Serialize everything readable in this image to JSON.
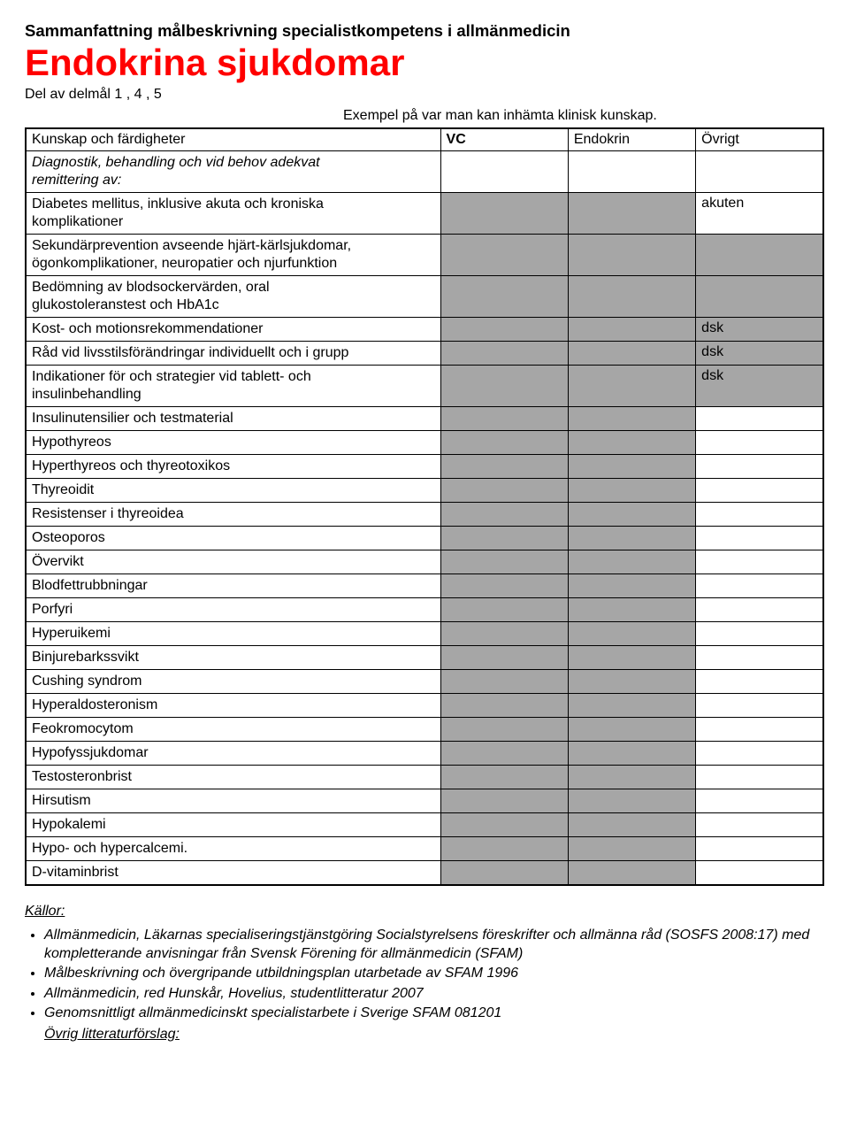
{
  "header": {
    "pretitle": "Sammanfattning målbeskrivning specialistkompetens i allmänmedicin",
    "title": "Endokrina sjukdomar",
    "subtitle": "Del av delmål 1 , 4 , 5",
    "example_line": "Exempel på var man kan inhämta klinisk kunskap."
  },
  "columns": {
    "c0": "Kunskap och färdigheter",
    "c1": "VC",
    "c2": "Endokrin",
    "c3": "Övrigt"
  },
  "intro_row": {
    "line1": "Diagnostik, behandling och vid behov adekvat",
    "line2": "remittering av:"
  },
  "rows": [
    {
      "label_l1": "Diabetes mellitus, inklusive akuta och kroniska",
      "label_l2": "komplikationer",
      "c1_gray": true,
      "c2_gray": true,
      "ovr": " akuten"
    },
    {
      "label_l1": "Sekundärprevention avseende hjärt-kärlsjukdomar,",
      "label_l2": "ögonkomplikationer, neuropatier och njurfunktion",
      "c1_gray": true,
      "c2_gray": true,
      "ovr_gray": true
    },
    {
      "label_l1": "Bedömning av blodsockervärden, oral",
      "label_l2": "glukostoleranstest och HbA1c",
      "c1_gray": true,
      "c2_gray": true,
      "ovr_gray": true
    },
    {
      "label_l1": "Kost- och motionsrekommendationer",
      "c1_gray": true,
      "c2_gray": true,
      "ovr": "dsk",
      "ovr_gray": true
    },
    {
      "label_l1": "Råd vid livsstilsförändringar individuellt och i grupp",
      "c1_gray": true,
      "c2_gray": true,
      "ovr": "dsk",
      "ovr_gray": true
    },
    {
      "label_l1": "Indikationer för och strategier vid tablett- och",
      "label_l2": "insulinbehandling",
      "c1_gray": true,
      "c2_gray": true,
      "ovr": "dsk",
      "ovr_gray": true
    },
    {
      "label_l1": "Insulinutensilier och testmaterial",
      "c1_gray": true,
      "c2_gray": true
    },
    {
      "label_l1": "Hypothyreos",
      "c1_gray": true,
      "c2_gray": true
    },
    {
      "label_l1": "Hyperthyreos och thyreotoxikos",
      "c1_gray": true,
      "c2_gray": true
    },
    {
      "label_l1": "Thyreoidit",
      "c1_gray": true,
      "c2_gray": true
    },
    {
      "label_l1": "Resistenser i thyreoidea",
      "c1_gray": true,
      "c2_gray": true
    },
    {
      "label_l1": "Osteoporos",
      "c1_gray": true,
      "c2_gray": true
    },
    {
      "label_l1": "Övervikt",
      "c1_gray": true,
      "c2_gray": true
    },
    {
      "label_l1": "Blodfettrubbningar",
      "c1_gray": true,
      "c2_gray": true
    },
    {
      "label_l1": "Porfyri",
      "c1_gray": true,
      "c2_gray": true
    },
    {
      "label_l1": "Hyperuikemi",
      "c1_gray": true,
      "c2_gray": true
    },
    {
      "label_l1": "Binjurebarkssvikt",
      "c1_gray": true,
      "c2_gray": true
    },
    {
      "label_l1": "Cushing syndrom",
      "c1_gray": true,
      "c2_gray": true
    },
    {
      "label_l1": "Hyperaldosteronism",
      "c1_gray": true,
      "c2_gray": true
    },
    {
      "label_l1": "Feokromocytom",
      "c1_gray": true,
      "c2_gray": true
    },
    {
      "label_l1": "Hypofyssjukdomar",
      "c1_gray": true,
      "c2_gray": true
    },
    {
      "label_l1": "Testosteronbrist",
      "c1_gray": true,
      "c2_gray": true
    },
    {
      "label_l1": "Hirsutism",
      "c1_gray": true,
      "c2_gray": true
    },
    {
      "label_l1": "Hypokalemi",
      "c1_gray": true,
      "c2_gray": true
    },
    {
      "label_l1": "Hypo- och hypercalcemi.",
      "c1_gray": true,
      "c2_gray": true
    },
    {
      "label_l1": "D-vitaminbrist",
      "c1_gray": true,
      "c2_gray": true
    }
  ],
  "sources": {
    "heading": "Källor:",
    "items": [
      "Allmänmedicin, Läkarnas specialiseringstjänstgöring Socialstyrelsens föreskrifter och allmänna råd (SOSFS 2008:17) med kompletterande anvisningar från Svensk Förening för allmänmedicin (SFAM)",
      " Målbeskrivning och övergripande utbildningsplan utarbetade av SFAM 1996",
      "Allmänmedicin, red Hunskår, Hovelius, studentlitteratur 2007",
      "Genomsnittligt allmänmedicinskt specialistarbete i Sverige SFAM 081201"
    ],
    "extra_heading": "Övrig litteraturförslag:"
  },
  "colors": {
    "gray": "#a6a6a6",
    "red": "#ff0000",
    "black": "#000000",
    "white": "#ffffff"
  }
}
